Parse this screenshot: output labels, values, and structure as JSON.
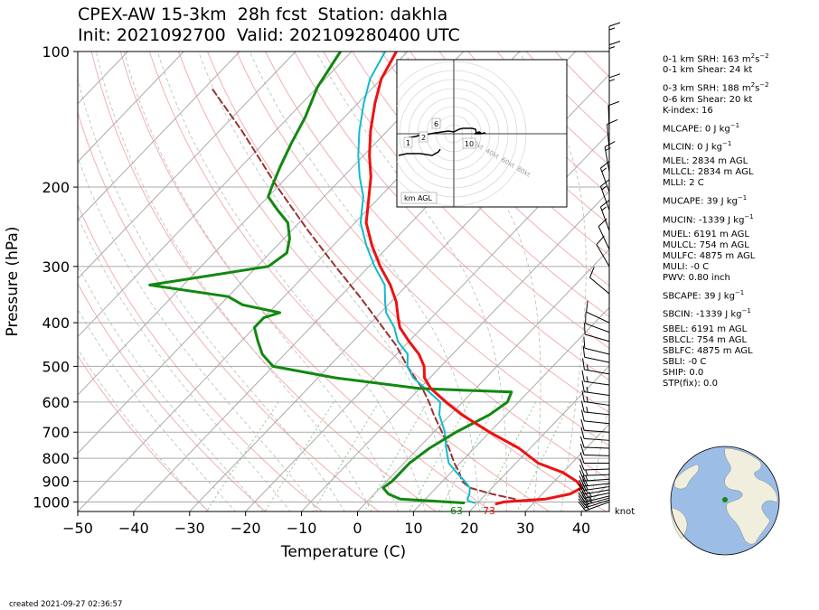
{
  "header": {
    "title_line1": "CPEX-AW 15-3km  28h fcst  Station: dakhla",
    "title_line2": "Init: 2021092700  Valid: 202109280400 UTC"
  },
  "footer": {
    "created": "created 2021-09-27 02:36:57"
  },
  "indices": [
    {
      "label": "0-1 km SRH: 163 m",
      "sup1": "2",
      "mid": "s",
      "sup2": "−2"
    },
    {
      "label": "0-1 km Shear: 24 kt"
    },
    {
      "label": "0-3 km SRH: 188 m",
      "sup1": "2",
      "mid": "s",
      "sup2": "−2",
      "gap": true
    },
    {
      "label": "0-6 km Shear: 20 kt"
    },
    {
      "label": "K-index: 16"
    },
    {
      "label": "MLCAPE: 0 J kg",
      "sup1": "−1",
      "gap": true
    },
    {
      "label": "MLCIN: 0 J kg",
      "sup1": "−1",
      "gap": true
    },
    {
      "label": "MLEL: 2834 m AGL",
      "gap": true
    },
    {
      "label": "MLLCL: 2834 m AGL"
    },
    {
      "label": "MLLI: 2 C"
    },
    {
      "label": "MUCAPE: 39 J kg",
      "sup1": "−1",
      "gap": true
    },
    {
      "label": "MUCIN: -1339 J kg",
      "sup1": "−1",
      "gap": true
    },
    {
      "label": "MUEL: 6191 m AGL",
      "gap": true
    },
    {
      "label": "MULCL: 754 m AGL"
    },
    {
      "label": "MULFC: 4875 m AGL"
    },
    {
      "label": "MULI: -0 C"
    },
    {
      "label": "PWV: 0.80 inch"
    },
    {
      "label": "SBCAPE: 39 J kg",
      "sup1": "−1",
      "gap": true
    },
    {
      "label": "SBCIN: -1339 J kg",
      "sup1": "−1",
      "gap": true
    },
    {
      "label": "SBEL: 6191 m AGL",
      "gap": true
    },
    {
      "label": "SBLCL: 754 m AGL"
    },
    {
      "label": "SBLFC: 4875 m AGL"
    },
    {
      "label": "SBLI: -0 C"
    },
    {
      "label": "SHIP: 0.0"
    },
    {
      "label": "STP(fix): 0.0"
    }
  ],
  "colors": {
    "temperature": "#ee1111",
    "dewpoint": "#118811",
    "wetbulb": "#11bbcc",
    "parcel": "#993333",
    "isobar": "#aaaaaa",
    "isotherm": "#aaaaaa",
    "dry_adiabat": "#f2b0b0",
    "moist_adiabat": "#bbbbbb",
    "mixing_ratio": "#88cc88",
    "hodograph": "#000000",
    "ocean": "#9bbde6",
    "land": "#f0eedd"
  },
  "chart_data": [
    {
      "type": "skew-t",
      "xlabel": "Temperature (C)",
      "ylabel": "Pressure (hPa)",
      "xlim": [
        -50,
        45
      ],
      "ylim_hpa": [
        1050,
        100
      ],
      "x_ticks": [
        -50,
        -40,
        -30,
        -20,
        -10,
        0,
        10,
        20,
        30,
        40
      ],
      "y_ticks": [
        100,
        200,
        300,
        400,
        500,
        600,
        700,
        800,
        900,
        1000
      ],
      "surface_labels": {
        "dewpoint_F": "63",
        "temperature_F": "73"
      },
      "wind_units": "knot",
      "series": [
        {
          "key": "temperature",
          "p": [
            1010,
            1000,
            985,
            960,
            930,
            900,
            860,
            820,
            760,
            700,
            640,
            600,
            560,
            530,
            500,
            470,
            440,
            410,
            390,
            360,
            330,
            300,
            270,
            240,
            210,
            190,
            170,
            150,
            130,
            115,
            100
          ],
          "t": [
            23.5,
            24.5,
            31.5,
            35,
            36,
            34,
            30,
            24,
            18,
            10,
            2,
            -3,
            -8,
            -11,
            -13,
            -16,
            -20,
            -24,
            -26,
            -29,
            -33,
            -38,
            -43,
            -48,
            -52,
            -55,
            -59,
            -63,
            -67,
            -70,
            -72
          ]
        },
        {
          "key": "dewpoint",
          "p": [
            1005,
            995,
            985,
            960,
            930,
            900,
            860,
            820,
            760,
            700,
            640,
            600,
            570,
            560,
            530,
            500,
            470,
            440,
            410,
            390,
            380,
            365,
            350,
            330,
            300,
            280,
            260,
            240,
            225,
            210,
            200,
            180,
            160,
            140,
            120,
            100
          ],
          "t": [
            17.5,
            11.5,
            5.5,
            2.5,
            0.5,
            1,
            1,
            1,
            2,
            4,
            7,
            8,
            7,
            -10,
            -27,
            -40,
            -44,
            -47,
            -50,
            -50,
            -48,
            -56,
            -60,
            -76,
            -58,
            -57,
            -59,
            -62,
            -66,
            -70,
            -71,
            -73,
            -75,
            -77,
            -80,
            -82
          ]
        },
        {
          "key": "wetbulb",
          "p": [
            1005,
            995,
            985,
            960,
            930,
            900,
            860,
            820,
            760,
            700,
            640,
            600,
            560,
            530,
            500,
            470,
            440,
            410,
            380,
            360,
            330,
            300,
            270,
            240,
            210,
            190,
            170,
            150,
            130,
            115,
            100
          ],
          "t": [
            19.5,
            18,
            17.5,
            17,
            16,
            14,
            11,
            8,
            5,
            2,
            -2,
            -4,
            -9,
            -13,
            -16,
            -18,
            -22,
            -25,
            -29,
            -31,
            -34,
            -39,
            -44,
            -49,
            -53,
            -57,
            -61,
            -65,
            -69,
            -72,
            -74
          ]
        },
        {
          "key": "parcel",
          "p": [
            985,
            960,
            930,
            900,
            860,
            820,
            760,
            700,
            640,
            600,
            560,
            500,
            450,
            400,
            350,
            300,
            250,
            200,
            150,
            120
          ],
          "t": [
            26,
            21,
            16,
            13.5,
            11.5,
            9,
            5.5,
            1.5,
            -3,
            -6,
            -9.5,
            -16,
            -21.5,
            -28.5,
            -36.5,
            -46,
            -57,
            -70,
            -86,
            -99
          ]
        }
      ]
    },
    {
      "type": "hodograph",
      "units": "kt",
      "ring_labels": [
        "20kt",
        "40kt",
        "60kt",
        "80kt"
      ],
      "height_labels": [
        "1",
        "2",
        "6",
        "10"
      ],
      "note": "km AGL",
      "u": [
        -21,
        -18,
        -12,
        -9,
        -5,
        0,
        4,
        10,
        17,
        24,
        30,
        36,
        40,
        50,
        54,
        55,
        60,
        58,
        53,
        60,
        64,
        65
      ],
      "v": [
        -9,
        -8,
        -7,
        -6,
        -5,
        -5,
        -4,
        -3,
        -2,
        -1,
        -2,
        1,
        2,
        2,
        1,
        -3,
        -3,
        -2,
        -4,
        -4,
        -3,
        -4
      ]
    }
  ]
}
